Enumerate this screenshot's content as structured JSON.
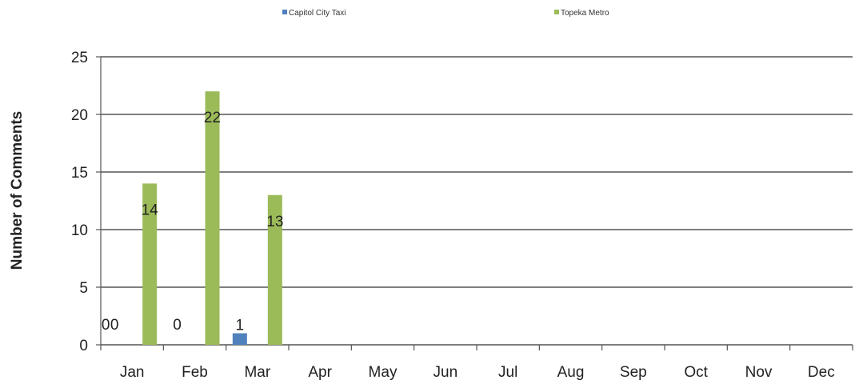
{
  "chart_data": {
    "type": "bar",
    "title": "",
    "xlabel": "",
    "ylabel": "Number of Comments",
    "ylim": [
      0,
      25
    ],
    "yticks": [
      0,
      5,
      10,
      15,
      20,
      25
    ],
    "grid": true,
    "legend_position": "top",
    "categories": [
      "Jan",
      "Feb",
      "Mar",
      "Apr",
      "May",
      "Jun",
      "Jul",
      "Aug",
      "Sep",
      "Oct",
      "Nov",
      "Dec"
    ],
    "series": [
      {
        "name": "Capitol City Taxi",
        "color": "#4f81bd",
        "values": [
          0,
          0,
          1,
          null,
          null,
          null,
          null,
          null,
          null,
          null,
          null,
          null
        ],
        "labels": [
          "0",
          "0",
          "1",
          "",
          "",
          "",
          "",
          "",
          "",
          "",
          "",
          ""
        ]
      },
      {
        "name": "Topeka Metro",
        "color": "#9bbb59",
        "values": [
          14,
          22,
          13,
          null,
          null,
          null,
          null,
          null,
          null,
          null,
          null,
          null
        ],
        "labels": [
          "14",
          "22",
          "13",
          "",
          "",
          "",
          "",
          "",
          "",
          "",
          "",
          ""
        ]
      }
    ],
    "extra_labels": [
      {
        "category": "Jan",
        "text": "0"
      }
    ]
  }
}
